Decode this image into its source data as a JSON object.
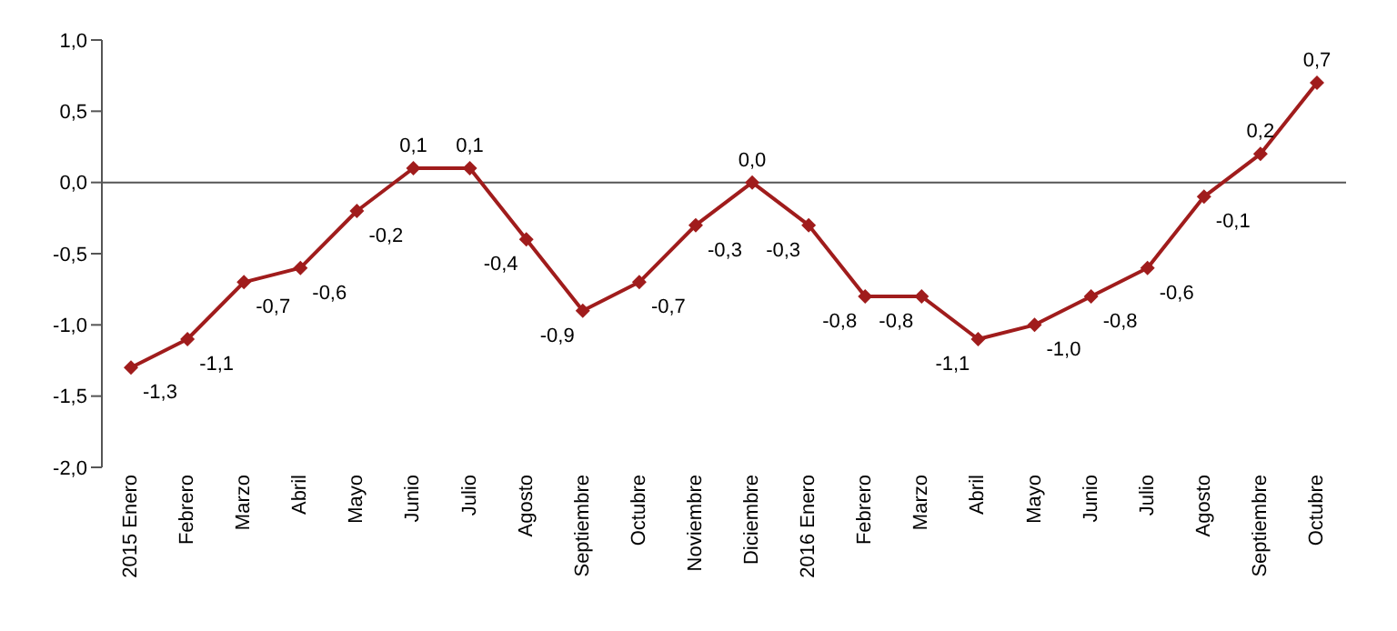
{
  "chart_data": {
    "type": "line",
    "categories": [
      "2015 Enero",
      "Febrero",
      "Marzo",
      "Abril",
      "Mayo",
      "Junio",
      "Julio",
      "Agosto",
      "Septiembre",
      "Octubre",
      "Noviembre",
      "Diciembre",
      "2016 Enero",
      "Febrero",
      "Marzo",
      "Abril",
      "Mayo",
      "Junio",
      "Julio",
      "Agosto",
      "Septiembre",
      "Octubre"
    ],
    "series": [
      {
        "color": "#a01c1c",
        "values": [
          -1.3,
          -1.1,
          -0.7,
          -0.6,
          -0.2,
          0.1,
          0.1,
          -0.4,
          -0.9,
          -0.7,
          -0.3,
          0.0,
          -0.3,
          -0.8,
          -0.8,
          -1.1,
          -1.0,
          -0.8,
          -0.6,
          -0.1,
          0.2,
          0.7
        ],
        "value_labels": [
          "-1,3",
          "-1,1",
          "-0,7",
          "-0,6",
          "-0,2",
          "0,1",
          "0,1",
          "-0,4",
          "-0,9",
          "-0,7",
          "-0,3",
          "0,0",
          "-0,3",
          "-0,8",
          "-0,8",
          "-1,1",
          "-1,0",
          "-0,8",
          "-0,6",
          "-0,1",
          "0,2",
          "0,7"
        ]
      }
    ],
    "ylim": [
      -2.0,
      1.0
    ],
    "yticks": [
      {
        "value": -2.0,
        "label": "-2,0"
      },
      {
        "value": -1.5,
        "label": "-1,5"
      },
      {
        "value": -1.0,
        "label": "-1,0"
      },
      {
        "value": -0.5,
        "label": "-0,5"
      },
      {
        "value": 0.0,
        "label": "0,0"
      },
      {
        "value": 0.5,
        "label": "0,5"
      },
      {
        "value": 1.0,
        "label": "1,0"
      }
    ],
    "ref_lines": [
      {
        "axis": "y",
        "value": 0.0,
        "color": "#555555"
      }
    ],
    "marker": "diamond",
    "grid": false,
    "legend": false
  }
}
